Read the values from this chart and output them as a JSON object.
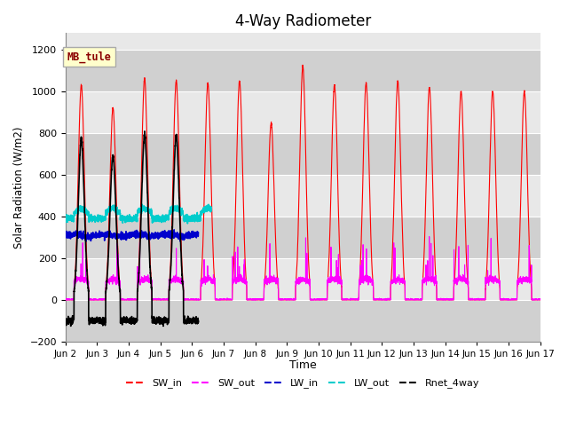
{
  "title": "4-Way Radiometer",
  "xlabel": "Time",
  "ylabel": "Solar Radiation (W/m2)",
  "ylim": [
    -200,
    1280
  ],
  "yticks": [
    -200,
    0,
    200,
    400,
    600,
    800,
    1000,
    1200
  ],
  "x_tick_labels": [
    "Jun 2",
    "Jun 3",
    "Jun 4",
    "Jun 5",
    "Jun 6",
    "Jun 7",
    "Jun 8",
    "Jun 9",
    "Jun 10",
    "Jun 11",
    "Jun 12",
    "Jun 13",
    "Jun 14",
    "Jun 15",
    "Jun 16",
    "Jun 17"
  ],
  "legend_entries": [
    "SW_in",
    "SW_out",
    "LW_in",
    "LW_out",
    "Rnet_4way"
  ],
  "legend_colors": [
    "#ff0000",
    "#ff00ff",
    "#0000ff",
    "#00ccff",
    "#000000"
  ],
  "sw_in_peaks": [
    1030,
    920,
    1060,
    1050,
    1040,
    1050,
    850,
    1120,
    1030,
    1040,
    1050,
    1020,
    1000,
    1000,
    1000
  ],
  "annotation_text": "MB_tule",
  "annotation_color": "#8b0000",
  "annotation_bg": "#ffffcc",
  "plot_bg": "#e8e8e8",
  "grid_bg": "#d4d4d4",
  "title_fontsize": 12
}
